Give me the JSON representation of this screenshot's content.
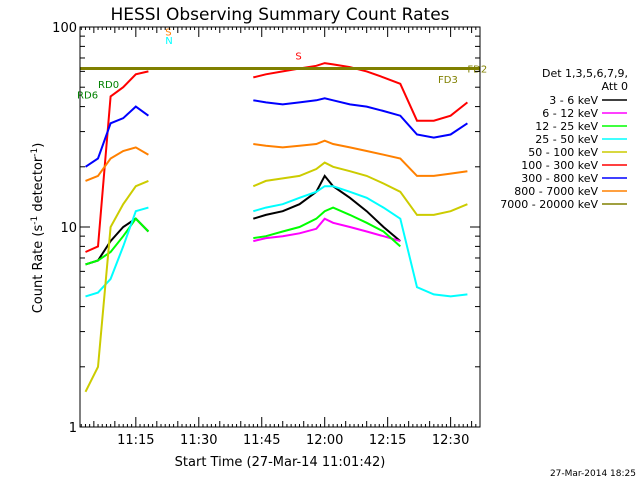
{
  "chart_data": {
    "type": "line",
    "title": "HESSI Observing Summary Count Rates",
    "xlabel": "Start Time (27-Mar-14 11:01:42)",
    "ylabel": "Count Rate (s⁻¹ detector⁻¹)",
    "ylabel_main": "Count Rate (s",
    "ylabel_sup1": "-1",
    "ylabel_mid": " detector",
    "ylabel_sup2": "-1",
    "ylabel_end": ")",
    "yscale": "log",
    "ylim": [
      1,
      100
    ],
    "xlim": [
      "11:01:42",
      "12:37:00"
    ],
    "x_ticks": [
      "11:15",
      "11:30",
      "11:45",
      "12:00",
      "12:15",
      "12:30"
    ],
    "y_ticks": [
      "1",
      "10",
      "100"
    ],
    "legend_title_lines": [
      "Det 1,3,5,6,7,9,",
      "Att 0"
    ],
    "legend_position": "right",
    "footer_timestamp": "27-Mar-2014 18:25",
    "series": [
      {
        "name": "3 - 6 keV",
        "color": "#000000",
        "x": [
          "11:03",
          "11:06",
          "11:09",
          "11:12",
          "11:15",
          "11:18",
          "11:21",
          "11:43",
          "11:46",
          "11:50",
          "11:54",
          "11:58",
          "12:00",
          "12:02",
          "12:06",
          "12:10",
          "12:14",
          "12:18",
          "12:23"
        ],
        "y": [
          6.5,
          6.8,
          8.5,
          10,
          11,
          9.5,
          0,
          11,
          11.5,
          12,
          13,
          15,
          18,
          16,
          14,
          12,
          10,
          8.5,
          0
        ]
      },
      {
        "name": "6 - 12 keV",
        "color": "#ff00ff",
        "x": [
          "11:43",
          "11:46",
          "11:50",
          "11:54",
          "11:58",
          "12:00",
          "12:02",
          "12:06",
          "12:10",
          "12:14",
          "12:18"
        ],
        "y": [
          8.5,
          8.8,
          9,
          9.3,
          9.8,
          11,
          10.5,
          10,
          9.5,
          9,
          8.5
        ]
      },
      {
        "name": "12 - 25 keV",
        "color": "#00ff00",
        "x": [
          "11:03",
          "11:06",
          "11:09",
          "11:12",
          "11:15",
          "11:18",
          "11:21",
          "11:43",
          "11:46",
          "11:50",
          "11:54",
          "11:58",
          "12:00",
          "12:02",
          "12:06",
          "12:10",
          "12:14",
          "12:18"
        ],
        "y": [
          6.5,
          6.8,
          7.5,
          9,
          11,
          9.5,
          0,
          8.8,
          9,
          9.5,
          10,
          11,
          12,
          12.5,
          11.5,
          10.5,
          9.5,
          8
        ]
      },
      {
        "name": "25 - 50 keV",
        "color": "#00ffff",
        "x": [
          "11:03",
          "11:06",
          "11:09",
          "11:12",
          "11:15",
          "11:18",
          "11:21",
          "11:43",
          "11:46",
          "11:50",
          "11:54",
          "11:58",
          "12:00",
          "12:02",
          "12:06",
          "12:10",
          "12:14",
          "12:18",
          "12:22",
          "12:26",
          "12:30",
          "12:34"
        ],
        "y": [
          4.5,
          4.7,
          5.5,
          8,
          12,
          12.5,
          0,
          12,
          12.5,
          13,
          14,
          15,
          16,
          16,
          15,
          14,
          12.5,
          11,
          5,
          4.6,
          4.5,
          4.6
        ]
      },
      {
        "name": "50 - 100 keV",
        "color": "#cccc00",
        "x": [
          "11:03",
          "11:06",
          "11:09",
          "11:12",
          "11:15",
          "11:18",
          "11:21",
          "11:43",
          "11:46",
          "11:50",
          "11:54",
          "11:58",
          "12:00",
          "12:02",
          "12:06",
          "12:10",
          "12:14",
          "12:18",
          "12:22",
          "12:26",
          "12:30",
          "12:34"
        ],
        "y": [
          1.5,
          2,
          10,
          13,
          16,
          17,
          0,
          16,
          17,
          17.5,
          18,
          19.5,
          21,
          20,
          19,
          18,
          16.5,
          15,
          11.5,
          11.5,
          12,
          13
        ]
      },
      {
        "name": "100 - 300 keV",
        "color": "#ff0000",
        "x": [
          "11:03",
          "11:06",
          "11:09",
          "11:12",
          "11:15",
          "11:18",
          "11:21",
          "11:43",
          "11:46",
          "11:50",
          "11:54",
          "11:58",
          "12:00",
          "12:02",
          "12:06",
          "12:10",
          "12:14",
          "12:18",
          "12:22",
          "12:26",
          "12:30",
          "12:34"
        ],
        "y": [
          7.5,
          8,
          45,
          50,
          58,
          60,
          0,
          56,
          58,
          60,
          62,
          64,
          66,
          65,
          63,
          60,
          56,
          52,
          34,
          34,
          36,
          42
        ]
      },
      {
        "name": "300 - 800 keV",
        "color": "#0000ff",
        "x": [
          "11:03",
          "11:06",
          "11:09",
          "11:12",
          "11:15",
          "11:18",
          "11:21",
          "11:43",
          "11:46",
          "11:50",
          "11:54",
          "11:58",
          "12:00",
          "12:02",
          "12:06",
          "12:10",
          "12:14",
          "12:18",
          "12:22",
          "12:26",
          "12:30",
          "12:34"
        ],
        "y": [
          20,
          22,
          33,
          35,
          40,
          36,
          0,
          43,
          42,
          41,
          42,
          43,
          44,
          43,
          41,
          40,
          38,
          36,
          29,
          28,
          29,
          33
        ]
      },
      {
        "name": "800 - 7000 keV",
        "color": "#ff8000",
        "x": [
          "11:03",
          "11:06",
          "11:09",
          "11:12",
          "11:15",
          "11:18",
          "11:21",
          "11:43",
          "11:46",
          "11:50",
          "11:54",
          "11:58",
          "12:00",
          "12:02",
          "12:06",
          "12:10",
          "12:14",
          "12:18",
          "12:22",
          "12:26",
          "12:30",
          "12:34"
        ],
        "y": [
          17,
          18,
          22,
          24,
          25,
          23,
          0,
          26,
          25.5,
          25,
          25.5,
          26,
          27,
          26,
          25,
          24,
          23,
          22,
          18,
          18,
          18.5,
          19
        ]
      },
      {
        "name": "7000 - 20000 keV",
        "color": "#808000",
        "x": [
          "11:01:42",
          "12:37"
        ],
        "y": [
          62,
          62
        ]
      }
    ],
    "annotations": [
      {
        "text": "S",
        "color": "#ff8000",
        "x": "11:22",
        "y": 95
      },
      {
        "text": "N",
        "color": "#00ffff",
        "x": "11:22",
        "y": 86
      },
      {
        "text": "S",
        "color": "#ff0000",
        "x": "11:53",
        "y": 72
      },
      {
        "text": "FD2",
        "color": "#808000",
        "x": "12:34",
        "y": 62
      },
      {
        "text": "FD3",
        "color": "#808000",
        "x": "12:27",
        "y": 55
      },
      {
        "text": "RD0",
        "color": "#008000",
        "x": "11:06",
        "y": 52
      },
      {
        "text": "RD6",
        "color": "#008000",
        "x": "11:01",
        "y": 46
      }
    ]
  }
}
